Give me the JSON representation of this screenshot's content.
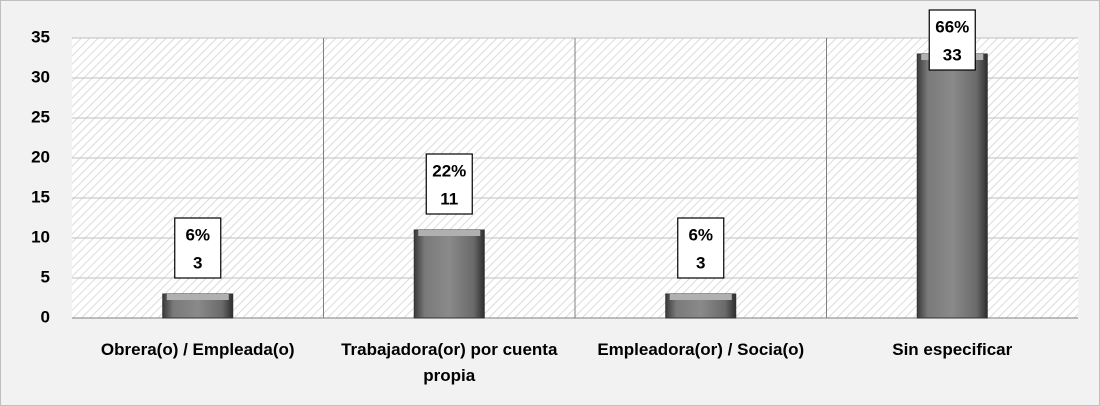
{
  "chart_data": {
    "type": "bar",
    "categories": [
      "Obrera(o) / Empleada(o)",
      "Trabajadora(or) por cuenta propia",
      "Empleadora(or) / Socia(o)",
      "Sin especificar"
    ],
    "values": [
      3,
      11,
      3,
      33
    ],
    "percent_labels": [
      "6%",
      "22%",
      "6%",
      "66%"
    ],
    "color": "#6e6e6e",
    "ylim": [
      0,
      35
    ],
    "yticks": [
      0,
      5,
      10,
      15,
      20,
      25,
      30,
      35
    ],
    "grid": true
  }
}
